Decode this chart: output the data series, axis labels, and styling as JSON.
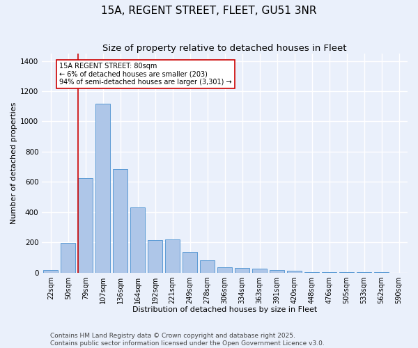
{
  "title": "15A, REGENT STREET, FLEET, GU51 3NR",
  "subtitle": "Size of property relative to detached houses in Fleet",
  "xlabel": "Distribution of detached houses by size in Fleet",
  "ylabel": "Number of detached properties",
  "categories": [
    "22sqm",
    "50sqm",
    "79sqm",
    "107sqm",
    "136sqm",
    "164sqm",
    "192sqm",
    "221sqm",
    "249sqm",
    "278sqm",
    "306sqm",
    "334sqm",
    "363sqm",
    "391sqm",
    "420sqm",
    "448sqm",
    "476sqm",
    "505sqm",
    "533sqm",
    "562sqm",
    "590sqm"
  ],
  "values": [
    15,
    195,
    625,
    1115,
    685,
    430,
    215,
    220,
    135,
    80,
    35,
    30,
    25,
    15,
    10,
    5,
    5,
    3,
    2,
    1,
    0
  ],
  "bar_color": "#aec6e8",
  "bar_edge_color": "#5b9bd5",
  "bg_color": "#eaf0fb",
  "grid_color": "#ffffff",
  "annotation_text_line1": "15A REGENT STREET: 80sqm",
  "annotation_text_line2": "← 6% of detached houses are smaller (203)",
  "annotation_text_line3": "94% of semi-detached houses are larger (3,301) →",
  "annotation_box_color": "#cc0000",
  "vline_index": 2,
  "footer_line1": "Contains HM Land Registry data © Crown copyright and database right 2025.",
  "footer_line2": "Contains public sector information licensed under the Open Government Licence v3.0.",
  "ylim": [
    0,
    1450
  ],
  "yticks": [
    0,
    200,
    400,
    600,
    800,
    1000,
    1200,
    1400
  ],
  "title_fontsize": 11,
  "subtitle_fontsize": 9.5,
  "label_fontsize": 8,
  "tick_fontsize": 7,
  "annotation_fontsize": 7,
  "footer_fontsize": 6.5
}
